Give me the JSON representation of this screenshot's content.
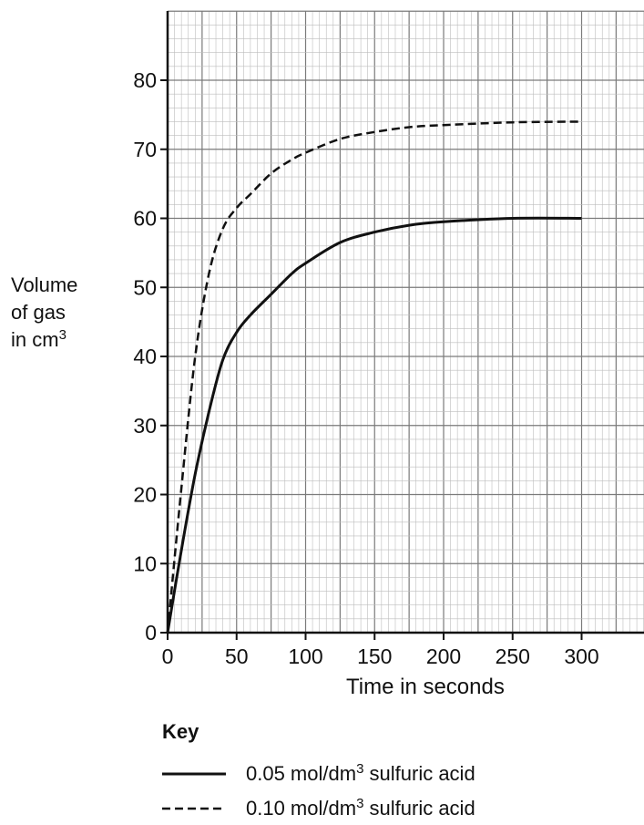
{
  "chart_data": {
    "type": "line",
    "xlabel": "Time in seconds",
    "ylabel_lines": [
      "Volume",
      "of gas",
      "in cm"
    ],
    "ylabel_sup": "3",
    "xlim": [
      0,
      340
    ],
    "ylim": [
      0,
      90
    ],
    "x_ticks": [
      0,
      50,
      100,
      150,
      200,
      250,
      300
    ],
    "y_ticks": [
      0,
      10,
      20,
      30,
      40,
      50,
      60,
      70,
      80
    ],
    "grid": true,
    "series": [
      {
        "name": "0.05 mol/dm3 sulfuric acid",
        "style": "solid",
        "x": [
          0,
          10,
          20,
          30,
          40,
          50,
          60,
          75,
          90,
          100,
          125,
          150,
          175,
          200,
          250,
          300
        ],
        "y": [
          0,
          12,
          23,
          32,
          39.5,
          43.5,
          46,
          49,
          52,
          53.5,
          56.5,
          58,
          59,
          59.5,
          60,
          60
        ]
      },
      {
        "name": "0.10 mol/dm3 sulfuric acid",
        "style": "dashed",
        "x": [
          0,
          10,
          20,
          30,
          40,
          50,
          60,
          75,
          90,
          100,
          125,
          150,
          175,
          200,
          250,
          300
        ],
        "y": [
          0,
          21,
          40,
          52,
          58.5,
          61.5,
          63.5,
          66.5,
          68.5,
          69.5,
          71.5,
          72.5,
          73.2,
          73.5,
          73.9,
          74
        ]
      }
    ]
  },
  "key": {
    "title": "Key",
    "items": [
      {
        "pre": "0.05 mol/dm",
        "sup": "3",
        "post": " sulfuric acid",
        "style": "solid"
      },
      {
        "pre": "0.10 mol/dm",
        "sup": "3",
        "post": " sulfuric acid",
        "style": "dashed"
      }
    ]
  },
  "colors": {
    "line": "#111111",
    "grid_minor": "#bdbdbd",
    "grid_major": "#7a7a7a",
    "axis": "#111111"
  }
}
